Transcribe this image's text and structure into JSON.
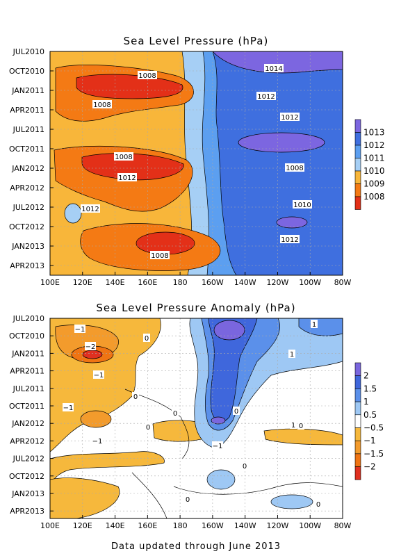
{
  "chart_data": [
    {
      "type": "heatmap",
      "title": "Sea Level Pressure (hPa)",
      "x_ticks": [
        "100E",
        "120E",
        "140E",
        "160E",
        "180",
        "160W",
        "140W",
        "120W",
        "100W",
        "80W"
      ],
      "y_ticks": [
        "JUL2010",
        "OCT2010",
        "JAN2011",
        "APR2011",
        "JUL2011",
        "OCT2011",
        "JAN2012",
        "APR2012",
        "JUL2012",
        "OCT2012",
        "JAN2013",
        "APR2013"
      ],
      "colorbar": {
        "labels": [
          "1013",
          "1012",
          "1011",
          "1010",
          "1009",
          "1008"
        ],
        "colors": [
          "#7c66e0",
          "#3f6fdf",
          "#5c9ff0",
          "#a6cff5",
          "#f8b63a",
          "#f47a14",
          "#e33018"
        ]
      },
      "contour_labels": [
        "1014",
        "1008",
        "1012",
        "1008",
        "1012",
        "1008",
        "1008",
        "1012",
        "1010",
        "1012",
        "1012",
        "1008"
      ],
      "grid": true
    },
    {
      "type": "heatmap",
      "title": "Sea Level Pressure Anomaly (hPa)",
      "x_ticks": [
        "100E",
        "120E",
        "140E",
        "160E",
        "180",
        "160W",
        "140W",
        "120W",
        "100W",
        "80W"
      ],
      "y_ticks": [
        "JUL2010",
        "OCT2010",
        "JAN2011",
        "APR2011",
        "JUL2011",
        "OCT2011",
        "JAN2012",
        "APR2012",
        "JUL2012",
        "OCT2012",
        "JAN2013",
        "APR2013"
      ],
      "colorbar": {
        "labels": [
          "2",
          "1.5",
          "1",
          "0.5",
          "−0.5",
          "−1",
          "−1.5",
          "−2"
        ],
        "colors": [
          "#7a66de",
          "#3f67dc",
          "#5b90ea",
          "#9ec8f4",
          "#ffffff",
          "#f6b83c",
          "#f39b2c",
          "#ef7413",
          "#e03020"
        ]
      },
      "contour_labels": [
        "−1",
        "0",
        "1",
        "−2",
        "1",
        "−1",
        "−1",
        "0",
        "−1",
        "−1",
        "0",
        "1",
        "0",
        "0",
        "0",
        "0",
        "0",
        "0"
      ],
      "grid": true
    }
  ],
  "footer": "Data updated through June 2013"
}
